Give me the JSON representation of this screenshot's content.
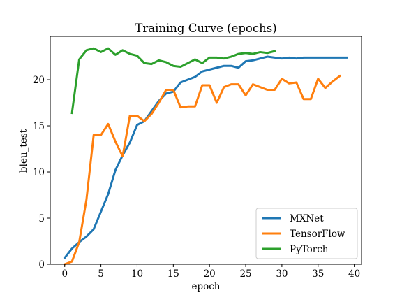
{
  "chart_data": {
    "type": "line",
    "title": "Training Curve (epochs)",
    "xlabel": "epoch",
    "ylabel": "bleu_test",
    "xlim": [
      -2,
      41
    ],
    "ylim": [
      0,
      24.7
    ],
    "xticks": [
      0,
      5,
      10,
      15,
      20,
      25,
      30,
      35,
      40
    ],
    "yticks": [
      0,
      5,
      10,
      15,
      20
    ],
    "grid": false,
    "legend_position": "lower right",
    "series": [
      {
        "name": "MXNet",
        "color": "#1f77b4",
        "x": [
          0,
          1,
          2,
          3,
          4,
          5,
          6,
          7,
          8,
          9,
          10,
          11,
          12,
          13,
          14,
          15,
          16,
          17,
          18,
          19,
          20,
          21,
          22,
          23,
          24,
          25,
          26,
          27,
          28,
          29,
          30,
          31,
          32,
          33,
          34,
          35,
          36,
          37,
          38,
          39
        ],
        "y": [
          0.7,
          1.7,
          2.4,
          3.0,
          3.8,
          5.7,
          7.6,
          10.2,
          11.8,
          13.2,
          15.1,
          15.5,
          16.6,
          17.7,
          18.5,
          18.7,
          19.7,
          20.0,
          20.3,
          20.9,
          21.1,
          21.3,
          21.5,
          21.5,
          21.3,
          22.0,
          22.1,
          22.3,
          22.5,
          22.4,
          22.3,
          22.4,
          22.3,
          22.4,
          22.4,
          22.4,
          22.4,
          22.4,
          22.4,
          22.4
        ]
      },
      {
        "name": "TensorFlow",
        "color": "#ff7f0e",
        "x": [
          0,
          1,
          2,
          3,
          4,
          5,
          6,
          7,
          8,
          9,
          10,
          11,
          12,
          13,
          14,
          15,
          16,
          17,
          18,
          19,
          20,
          21,
          22,
          23,
          24,
          25,
          26,
          27,
          28,
          29,
          30,
          31,
          32,
          33,
          34,
          35,
          36,
          37,
          38
        ],
        "y": [
          0.0,
          0.3,
          2.4,
          7.0,
          14.0,
          14.0,
          15.2,
          13.3,
          11.7,
          16.1,
          16.1,
          15.5,
          16.3,
          17.5,
          18.9,
          18.9,
          17.0,
          17.1,
          17.1,
          19.4,
          19.4,
          17.5,
          19.2,
          19.5,
          19.5,
          18.3,
          19.5,
          19.2,
          18.9,
          18.9,
          20.1,
          19.6,
          19.7,
          17.9,
          17.9,
          20.1,
          19.1,
          19.8,
          20.4
        ]
      },
      {
        "name": "PyTorch",
        "color": "#2ca02c",
        "x": [
          1,
          2,
          3,
          4,
          5,
          6,
          7,
          8,
          9,
          10,
          11,
          12,
          13,
          14,
          15,
          16,
          17,
          18,
          19,
          20,
          21,
          22,
          23,
          24,
          25,
          26,
          27,
          28,
          29
        ],
        "y": [
          16.4,
          22.2,
          23.2,
          23.4,
          23.0,
          23.4,
          22.7,
          23.2,
          22.8,
          22.6,
          21.8,
          21.7,
          22.1,
          21.9,
          21.5,
          21.4,
          21.8,
          22.2,
          21.8,
          22.4,
          22.4,
          22.3,
          22.5,
          22.8,
          22.9,
          22.8,
          23.0,
          22.9,
          23.1
        ]
      }
    ]
  }
}
